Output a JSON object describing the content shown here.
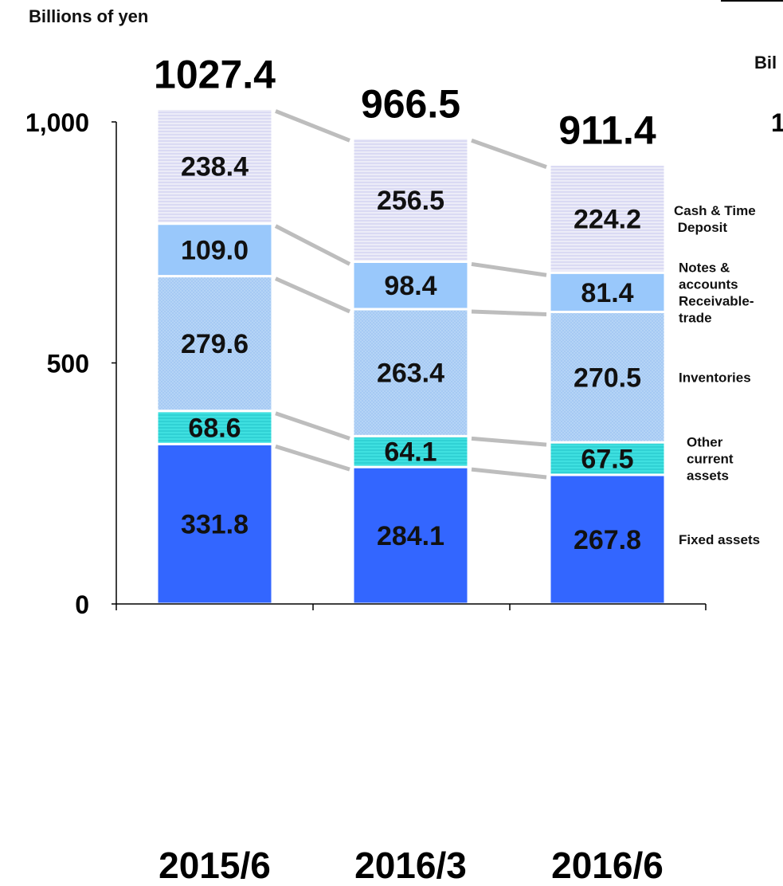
{
  "chart_data": {
    "type": "bar",
    "stacked": true,
    "ylabel": "Billions of yen",
    "ylim": [
      0,
      1000
    ],
    "yticks": [
      "0",
      "500",
      "1,000"
    ],
    "ytick_values": [
      0,
      500,
      1000
    ],
    "categories": [
      "2015/6",
      "2016/3",
      "2016/6"
    ],
    "totals": [
      "1027.4",
      "966.5",
      "911.4"
    ],
    "series": [
      {
        "name": "Fixed assets",
        "values": [
          331.8,
          284.1,
          267.8
        ],
        "labels": [
          "331.8",
          "284.1",
          "267.8"
        ],
        "color": "#3366ff"
      },
      {
        "name": "Other current assets",
        "values": [
          68.6,
          64.1,
          67.5
        ],
        "labels": [
          "68.6",
          "64.1",
          "67.5"
        ],
        "color": "#33dddd"
      },
      {
        "name": "Inventories",
        "values": [
          279.6,
          263.4,
          270.5
        ],
        "labels": [
          "279.6",
          "263.4",
          "270.5"
        ],
        "color": "#a8cdf5"
      },
      {
        "name": "Notes & accounts Receivable-trade",
        "values": [
          109.0,
          98.4,
          81.4
        ],
        "labels": [
          "109.0",
          "98.4",
          "81.4"
        ],
        "color": "#99c8fb"
      },
      {
        "name": "Cash & Time Deposit",
        "values": [
          238.4,
          256.5,
          224.2
        ],
        "labels": [
          "238.4",
          "256.5",
          "224.2"
        ],
        "color": "#e2e2f6"
      }
    ],
    "legend": {
      "placement": "right",
      "entries": [
        {
          "key": "cash",
          "lines": [
            "Cash & Time",
            " Deposit"
          ]
        },
        {
          "key": "notes",
          "lines": [
            "Notes &",
            "accounts",
            "Receivable-",
            "trade"
          ]
        },
        {
          "key": "inventories",
          "lines": [
            "Inventories"
          ]
        },
        {
          "key": "other",
          "lines": [
            "Other",
            "current",
            "assets"
          ]
        },
        {
          "key": "fixed",
          "lines": [
            "Fixed assets"
          ]
        }
      ]
    },
    "grid": false
  },
  "page": {
    "unit_label": "Billions of yen",
    "right_fragment": "Bil",
    "right_fragment_tick": "1"
  }
}
